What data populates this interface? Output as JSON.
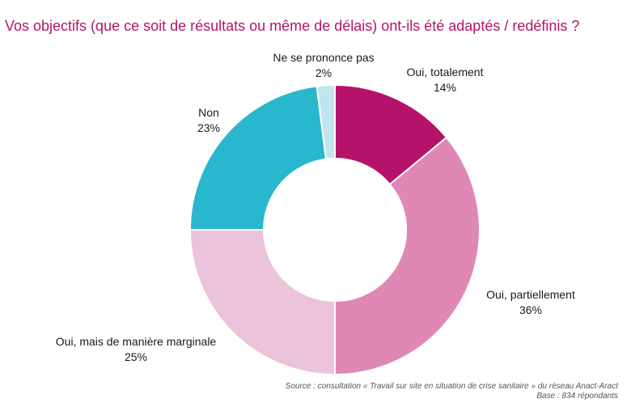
{
  "chart_data": {
    "type": "pie",
    "title": "Vos objectifs (que ce soit de résultats ou même de délais) ont-ils été adaptés / redéfinis ?",
    "slices": [
      {
        "label": "Oui, totalement",
        "value": 14,
        "display": "14%",
        "color": "#b5136a"
      },
      {
        "label": "Oui, partiellement",
        "value": 36,
        "display": "36%",
        "color": "#df88b6"
      },
      {
        "label": "Oui, mais de manière marginale",
        "value": 25,
        "display": "25%",
        "color": "#ebc3da"
      },
      {
        "label": "Non",
        "value": 23,
        "display": "23%",
        "color": "#28b7cd"
      },
      {
        "label": "Ne se prononce pas",
        "value": 2,
        "display": "2%",
        "color": "#bfe6ee"
      }
    ]
  },
  "source": {
    "line1": "Source : consultation « Travail sur site en situation de crise sanitaire » du réseau Anact-Aract",
    "line2": "Base : 834 répondants"
  }
}
